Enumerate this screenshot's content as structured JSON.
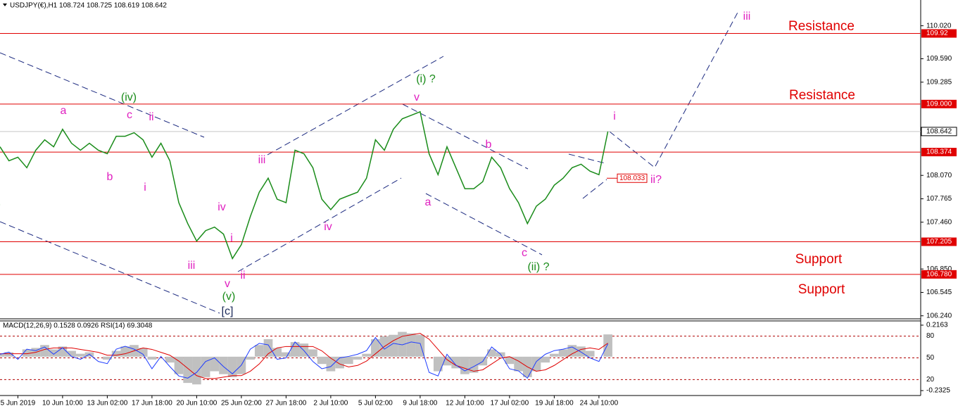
{
  "chart_data": [
    {
      "type": "line",
      "title": "USDJPY(€),H1 108.724 108.725 108.619 108.642",
      "categories": [
        null,
        null,
        "5 Jun 2019",
        null,
        null,
        null,
        null,
        "10 Jun 10:00",
        null,
        null,
        null,
        null,
        "13 Jun 02:00",
        null,
        null,
        null,
        null,
        "17 Jun 18:00",
        null,
        null,
        null,
        null,
        "20 Jun 10:00",
        null,
        null,
        null,
        null,
        "25 Jun 02:00",
        null,
        null,
        null,
        null,
        "27 Jun 18:00",
        null,
        null,
        null,
        null,
        "2 Jul 10:00",
        null,
        null,
        null,
        null,
        "5 Jul 02:00",
        null,
        null,
        null,
        null,
        "9 Jul 18:00",
        null,
        null,
        null,
        null,
        "12 Jul 10:00",
        null,
        null,
        null,
        null,
        "17 Jul 02:00",
        null,
        null,
        null,
        null,
        "19 Jul 18:00",
        null,
        null,
        null,
        null,
        "24 Jul 10:00",
        null
      ],
      "series": [
        {
          "color": "#1a8c1a",
          "values": [
            108.443,
            108.261,
            108.307,
            108.17,
            108.398,
            108.534,
            108.443,
            108.671,
            108.489,
            108.398,
            108.489,
            108.398,
            108.352,
            108.58,
            108.58,
            108.626,
            108.534,
            108.307,
            108.489,
            108.261,
            107.715,
            107.442,
            107.214,
            107.35,
            107.396,
            107.305,
            106.986,
            107.168,
            107.533,
            107.851,
            108.034,
            107.76,
            107.715,
            108.398,
            108.352,
            108.17,
            107.76,
            107.624,
            107.76,
            107.806,
            107.851,
            108.034,
            108.534,
            108.398,
            108.671,
            108.808,
            108.853,
            108.899,
            108.352,
            108.079,
            108.443,
            108.17,
            107.897,
            107.897,
            107.988,
            108.307,
            108.17,
            107.897,
            107.715,
            107.442,
            107.669,
            107.76,
            107.942,
            108.034,
            108.17,
            108.216,
            108.125,
            108.079,
            108.642
          ]
        }
      ],
      "ylim": [
        106.21,
        110.31
      ],
      "yticks": [
        {
          "value": 110.02,
          "label": "110.020"
        },
        {
          "value": 109.59,
          "label": "109.590"
        },
        {
          "value": 109.285,
          "label": "109.285"
        },
        {
          "value": 108.07,
          "label": "108.070"
        },
        107.765,
        {
          "value": 107.46,
          "label": "107.460"
        },
        {
          "value": 106.85,
          "label": "106.850"
        },
        106.545,
        {
          "value": 106.24,
          "label": "106.240"
        }
      ],
      "levels": [
        109.92,
        {
          "value": 109.0,
          "label": "109.000"
        },
        108.374,
        107.205,
        {
          "value": 106.78,
          "label": "106.780"
        }
      ],
      "level_color": "#e00000",
      "current_price": 108.642,
      "marker_label": 108.033,
      "annotations": [
        {
          "text": "Resistance",
          "color": "#e00000"
        },
        {
          "text": "Resistance",
          "color": "#e00000"
        },
        {
          "text": "Support",
          "color": "#e00000"
        },
        {
          "text": "Support",
          "color": "#e00000"
        },
        {
          "text": "a",
          "color": "#e020c0"
        },
        {
          "text": "(iv)",
          "color": "#1a8c1a"
        },
        {
          "text": "c",
          "color": "#e020c0"
        },
        {
          "text": "ii",
          "color": "#e020c0"
        },
        {
          "text": "b",
          "color": "#e020c0"
        },
        {
          "text": "i",
          "color": "#e020c0"
        },
        {
          "text": "(i)",
          "color": "#1a8c1a"
        },
        {
          "text": "iii",
          "color": "#e020c0"
        },
        {
          "text": "iv",
          "color": "#e020c0"
        },
        {
          "text": "i",
          "color": "#e020c0"
        },
        {
          "text": "ii",
          "color": "#e020c0"
        },
        {
          "text": "v",
          "color": "#e020c0"
        },
        {
          "text": "(v)",
          "color": "#1a8c1a"
        },
        {
          "text": "[c]",
          "color": "#1c2a5a"
        },
        {
          "text": "iii",
          "color": "#e020c0"
        },
        {
          "text": "iv",
          "color": "#e020c0"
        },
        {
          "text": "(i) ?",
          "color": "#1a8c1a"
        },
        {
          "text": "v",
          "color": "#e020c0"
        },
        {
          "text": "a",
          "color": "#e020c0"
        },
        {
          "text": "b",
          "color": "#e020c0"
        },
        {
          "text": "c",
          "color": "#e020c0"
        },
        {
          "text": "(ii) ?",
          "color": "#1a8c1a"
        },
        {
          "text": "i",
          "color": "#e020c0"
        },
        {
          "text": "ii?",
          "color": "#e020c0"
        },
        {
          "text": "iii",
          "color": "#e020c0"
        }
      ]
    },
    {
      "type": "indicator",
      "title": "MACD(12,26,9) 0.1528 0.0926 RSI(14) 69.3048",
      "series": [
        {
          "type": "bar",
          "axis": "y2",
          "color": "#c0c0c0",
          "values": [
            0.02,
            0.03,
            0.0,
            0.05,
            0.06,
            0.08,
            0.05,
            0.07,
            0.04,
            0.02,
            0.03,
            0.0,
            -0.02,
            0.04,
            0.07,
            0.08,
            0.06,
            -0.02,
            0.0,
            -0.04,
            -0.12,
            -0.18,
            -0.19,
            -0.14,
            -0.1,
            -0.12,
            -0.14,
            -0.12,
            -0.02,
            0.08,
            0.12,
            0.06,
            0.03,
            0.1,
            0.09,
            0.05,
            -0.05,
            -0.1,
            -0.08,
            -0.05,
            -0.02,
            0.02,
            0.12,
            0.14,
            0.15,
            0.17,
            0.16,
            0.15,
            0.0,
            -0.1,
            -0.06,
            -0.08,
            -0.12,
            -0.11,
            -0.06,
            0.05,
            0.03,
            -0.05,
            -0.1,
            -0.14,
            -0.1,
            -0.04,
            0.02,
            0.05,
            0.08,
            0.07,
            0.04,
            0.0,
            0.1528
          ]
        },
        {
          "type": "line",
          "axis": "y2",
          "color": "#e00000",
          "values": [
            0.02,
            0.02,
            0.02,
            0.02,
            0.03,
            0.05,
            0.06,
            0.06,
            0.06,
            0.05,
            0.04,
            0.03,
            0.01,
            0.01,
            0.02,
            0.04,
            0.06,
            0.05,
            0.03,
            0.01,
            -0.03,
            -0.08,
            -0.13,
            -0.15,
            -0.15,
            -0.14,
            -0.13,
            -0.13,
            -0.1,
            -0.05,
            0.02,
            0.06,
            0.07,
            0.07,
            0.07,
            0.07,
            0.04,
            -0.01,
            -0.05,
            -0.07,
            -0.06,
            -0.03,
            0.02,
            0.07,
            0.11,
            0.14,
            0.15,
            0.16,
            0.12,
            0.05,
            -0.02,
            -0.06,
            -0.08,
            -0.1,
            -0.09,
            -0.05,
            -0.01,
            0.0,
            -0.03,
            -0.07,
            -0.1,
            -0.09,
            -0.06,
            -0.02,
            0.02,
            0.05,
            0.06,
            0.05,
            0.0926
          ]
        },
        {
          "type": "line",
          "axis": "y",
          "color": "#1e3cff",
          "values": [
            55,
            58,
            48,
            62,
            60,
            65,
            55,
            64,
            52,
            48,
            55,
            45,
            42,
            62,
            66,
            62,
            55,
            35,
            52,
            38,
            25,
            22,
            30,
            45,
            50,
            38,
            28,
            40,
            62,
            70,
            68,
            48,
            50,
            72,
            60,
            45,
            35,
            38,
            50,
            52,
            55,
            60,
            78,
            62,
            70,
            68,
            72,
            70,
            30,
            25,
            55,
            40,
            32,
            38,
            45,
            65,
            55,
            35,
            32,
            22,
            45,
            55,
            60,
            62,
            65,
            58,
            50,
            45,
            69.3048
          ]
        }
      ],
      "ylim": [
        0,
        100
      ],
      "yticks": [
        20,
        50,
        80
      ],
      "grid": true,
      "grid_color": "#b00000",
      "y2lim": [
        -0.2566,
        0.2404
      ],
      "y2ticks": [
        -0.2325,
        0.2163
      ]
    }
  ]
}
